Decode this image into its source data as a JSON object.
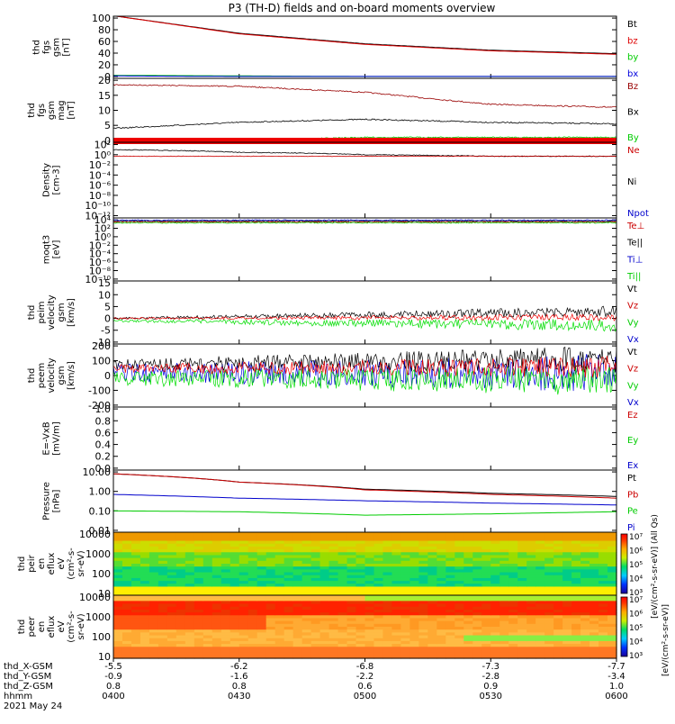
{
  "title": "P3 (TH-D) fields and on-board moments overview",
  "x_ticks": [
    "0400",
    "0430",
    "0500",
    "0530",
    "0600"
  ],
  "ephemeris": {
    "row_labels": [
      "thd_X-GSM",
      "thd_Y-GSM",
      "thd_Z-GSM",
      "hhmm",
      "2021 May 24"
    ],
    "x_gsm": [
      "-5.5",
      "-6.2",
      "-6.8",
      "-7.3",
      "-7.7"
    ],
    "y_gsm": [
      "-0.9",
      "-1.6",
      "-2.2",
      "-2.8",
      "-3.4"
    ],
    "z_gsm": [
      "0.8",
      "0.8",
      "0.6",
      "0.9",
      "1.0"
    ]
  },
  "panels": [
    {
      "id": "fgs_gsm_1",
      "ylabel_lines": [
        "thd",
        "fgs",
        "gsm",
        "[nT]"
      ],
      "ylim": [
        0,
        100
      ],
      "yticks": [
        "100",
        "80",
        "60",
        "40",
        "20",
        "0"
      ],
      "legend": [
        {
          "label": "Bt",
          "color": "#000000"
        },
        {
          "label": "bz",
          "color": "#dd0000"
        },
        {
          "label": "by",
          "color": "#00cc00"
        },
        {
          "label": "bx",
          "color": "#0000dd"
        }
      ]
    },
    {
      "id": "fgs_gsm_2",
      "ylabel_lines": [
        "thd",
        "fgs",
        "gsm",
        "mag",
        "[nT]"
      ],
      "ylim": [
        -2,
        21
      ],
      "yticks": [
        "20",
        "15",
        "10",
        "5",
        "0"
      ],
      "legend": [
        {
          "label": "Bz",
          "color": "#990000"
        },
        {
          "label": "Bx",
          "color": "#000000"
        },
        {
          "label": "By",
          "color": "#00cc00"
        }
      ]
    },
    {
      "id": "density",
      "ylabel_lines": [
        "Density",
        "[cm-3]"
      ],
      "log": true,
      "yticks": [
        "10²",
        "10⁰",
        "10⁻²",
        "10⁻⁴",
        "10⁻⁶",
        "10⁻⁸",
        "10⁻¹⁰",
        "10⁻¹²"
      ],
      "legend": [
        {
          "label": "Ne",
          "color": "#cc0000"
        },
        {
          "label": "Ni",
          "color": "#000000"
        },
        {
          "label": "Npot",
          "color": "#0000cc"
        }
      ]
    },
    {
      "id": "temperature",
      "ylabel_lines": [
        "moqt3",
        "[eV]"
      ],
      "log": true,
      "yticks": [
        "10⁴",
        "10²",
        "10⁰",
        "10⁻²",
        "10⁻⁴",
        "10⁻⁶",
        "10⁻⁸",
        "10⁻¹⁰"
      ],
      "legend": [
        {
          "label": "Te⊥",
          "color": "#cc0000"
        },
        {
          "label": "Te||",
          "color": "#000000"
        },
        {
          "label": "Ti⊥",
          "color": "#0000cc"
        },
        {
          "label": "Ti||",
          "color": "#00cc00"
        }
      ]
    },
    {
      "id": "peim_velocity",
      "ylabel_lines": [
        "thd",
        "peim",
        "velocity",
        "gsm",
        "[km/s]"
      ],
      "ylim": [
        -12,
        15
      ],
      "yticks": [
        "15",
        "10",
        "5",
        "0",
        "-5",
        "-10"
      ],
      "legend": [
        {
          "label": "Vt",
          "color": "#000000"
        },
        {
          "label": "Vz",
          "color": "#cc0000"
        },
        {
          "label": "Vy",
          "color": "#00cc00"
        },
        {
          "label": "Vx",
          "color": "#0000cc"
        }
      ]
    },
    {
      "id": "peem_velocity",
      "ylabel_lines": [
        "thd",
        "peem",
        "velocity",
        "gsm",
        "[km/s]"
      ],
      "ylim": [
        -200,
        200
      ],
      "yticks": [
        "200",
        "100",
        "0",
        "-100",
        "-200"
      ],
      "legend": [
        {
          "label": "Vt",
          "color": "#000000"
        },
        {
          "label": "Vz",
          "color": "#cc0000"
        },
        {
          "label": "Vy",
          "color": "#00cc00"
        },
        {
          "label": "Vx",
          "color": "#0000cc"
        }
      ]
    },
    {
      "id": "efield",
      "ylabel_lines": [
        "E=-VxB",
        "[mV/m]"
      ],
      "ylim": [
        0,
        1
      ],
      "yticks": [
        "1.0",
        "0.8",
        "0.6",
        "0.4",
        "0.2",
        "0.0"
      ],
      "legend": [
        {
          "label": "Ez",
          "color": "#cc0000"
        },
        {
          "label": "Ey",
          "color": "#00cc00"
        },
        {
          "label": "Ex",
          "color": "#0000cc"
        }
      ]
    },
    {
      "id": "pressure",
      "ylabel_lines": [
        "Pressure",
        "[nPa]"
      ],
      "log": true,
      "yticks": [
        "10.00",
        "1.00",
        "0.10",
        "0.01"
      ],
      "legend": [
        {
          "label": "Pt",
          "color": "#000000"
        },
        {
          "label": "Pb",
          "color": "#cc0000"
        },
        {
          "label": "Pe",
          "color": "#00cc00"
        },
        {
          "label": "Pi",
          "color": "#0000cc"
        }
      ]
    },
    {
      "id": "peir_en_eflux",
      "ylabel_lines": [
        "thd",
        "peir",
        "en",
        "eflux",
        "eV",
        "(cm²-s-",
        "sr-eV)"
      ],
      "yticks": [
        "10000",
        "1000",
        "100",
        "10"
      ],
      "colorbar_ticks": [
        "10⁷",
        "10⁶",
        "10⁵",
        "10⁴",
        "10³"
      ],
      "colorbar_label": "[eV/(cm²-s-sr-eV)] (All Qs)"
    },
    {
      "id": "peer_en_eflux",
      "ylabel_lines": [
        "thd",
        "peer",
        "en",
        "eflux",
        "eV",
        "(cm²-s-",
        "sr-eV)"
      ],
      "yticks": [
        "10000",
        "1000",
        "100",
        "10"
      ],
      "colorbar_ticks": [
        "10⁷",
        "10⁶",
        "10⁵",
        "10⁴",
        "10³"
      ],
      "colorbar_label": "[eV/(cm²-s-sr-eV)]"
    }
  ],
  "chart_data": [
    {
      "type": "line",
      "title": "P3 (TH-D) fields and on-board moments overview",
      "ylabel": "thd fgs gsm [nT]",
      "x": [
        "0400",
        "0430",
        "0500",
        "0530",
        "0600"
      ],
      "series": [
        {
          "name": "Bt",
          "values": [
            104,
            74,
            56,
            45,
            39
          ]
        },
        {
          "name": "bz",
          "values": [
            104,
            73,
            55,
            44,
            38
          ]
        },
        {
          "name": "by",
          "values": [
            2,
            1,
            0,
            0,
            0
          ]
        },
        {
          "name": "bx",
          "values": [
            1,
            0,
            0,
            0,
            0
          ]
        }
      ]
    },
    {
      "type": "line",
      "ylabel": "thd fgs gsm mag [nT]",
      "x": [
        "0400",
        "0430",
        "0500",
        "0530",
        "0600"
      ],
      "series": [
        {
          "name": "Bz",
          "values": [
            18.5,
            18,
            16,
            12,
            11
          ]
        },
        {
          "name": "Bx",
          "values": [
            4,
            6,
            7,
            6,
            5.5
          ]
        },
        {
          "name": "By",
          "values": [
            -1,
            0,
            1,
            1,
            1
          ]
        }
      ]
    },
    {
      "type": "line",
      "ylabel": "Density [cm-3]",
      "x": [
        "0400",
        "0430",
        "0500",
        "0530",
        "0600"
      ],
      "series": [
        {
          "name": "Ne",
          "values": [
            0.5,
            0.5,
            0.5,
            0.5,
            0.5
          ]
        },
        {
          "name": "Ni",
          "values": [
            10,
            3,
            1,
            0.5,
            0.5
          ]
        }
      ]
    },
    {
      "type": "line",
      "ylabel": "moqt3 [eV]",
      "x": [
        "0400",
        "0430",
        "0500",
        "0530",
        "0600"
      ],
      "series": [
        {
          "name": "Te⊥",
          "values": [
            3000,
            3000,
            3000,
            3000,
            3000
          ]
        },
        {
          "name": "Te||",
          "values": [
            5000,
            5000,
            5000,
            5000,
            5000
          ]
        },
        {
          "name": "Ti⊥",
          "values": [
            8000,
            8000,
            8000,
            8000,
            8000
          ]
        },
        {
          "name": "Ti||",
          "values": [
            2000,
            2000,
            2000,
            2000,
            2000
          ]
        }
      ]
    },
    {
      "type": "line",
      "ylabel": "thd peim velocity gsm [km/s]",
      "x": [
        "0400",
        "0430",
        "0500",
        "0530",
        "0600"
      ],
      "series": [
        {
          "name": "Vt",
          "values": [
            0,
            0.5,
            2,
            4,
            6
          ]
        },
        {
          "name": "Vz",
          "values": [
            0,
            0,
            0.5,
            1,
            1
          ]
        },
        {
          "name": "Vy",
          "values": [
            -0.5,
            -1,
            -1.5,
            -3,
            -4
          ]
        },
        {
          "name": "Vx",
          "values": [
            0,
            0,
            0,
            0,
            0
          ]
        }
      ]
    },
    {
      "type": "line",
      "ylabel": "thd peem velocity gsm [km/s]",
      "x": [
        "0400",
        "0430",
        "0500",
        "0530",
        "0600"
      ],
      "series": [
        {
          "name": "Vt",
          "values": [
            70,
            90,
            100,
            110,
            110
          ]
        },
        {
          "name": "Vz",
          "values": [
            40,
            45,
            50,
            55,
            60
          ]
        },
        {
          "name": "Vy",
          "values": [
            -20,
            -20,
            -20,
            -30,
            -30
          ]
        },
        {
          "name": "Vx",
          "values": [
            20,
            20,
            20,
            20,
            20
          ]
        }
      ]
    },
    {
      "type": "line",
      "ylabel": "E=-VxB [mV/m]",
      "x": [
        "0400",
        "0430",
        "0500",
        "0530",
        "0600"
      ],
      "ylim": [
        0,
        1
      ],
      "series": []
    },
    {
      "type": "line",
      "ylabel": "Pressure [nPa]",
      "x": [
        "0400",
        "0430",
        "0500",
        "0530",
        "0600"
      ],
      "series": [
        {
          "name": "Pt",
          "values": [
            8,
            3,
            1.3,
            0.8,
            0.55
          ]
        },
        {
          "name": "Pb",
          "values": [
            8,
            3,
            1.2,
            0.7,
            0.45
          ]
        },
        {
          "name": "Pe",
          "values": [
            0.1,
            0.09,
            0.06,
            0.07,
            0.09
          ]
        },
        {
          "name": "Pi",
          "values": [
            0.7,
            0.45,
            0.33,
            0.25,
            0.2
          ]
        }
      ]
    },
    {
      "type": "heatmap",
      "ylabel": "thd peir en eflux eV (cm²-s-sr-eV)",
      "x": [
        "0400",
        "0430",
        "0500",
        "0530",
        "0600"
      ],
      "y_range_eV": [
        5,
        25000
      ],
      "color_range": [
        1000,
        10000000
      ]
    },
    {
      "type": "heatmap",
      "ylabel": "thd peer en eflux eV (cm²-s-sr-eV)",
      "x": [
        "0400",
        "0430",
        "0500",
        "0530",
        "0600"
      ],
      "y_range_eV": [
        5,
        25000
      ],
      "color_range": [
        1000,
        10000000
      ]
    }
  ]
}
